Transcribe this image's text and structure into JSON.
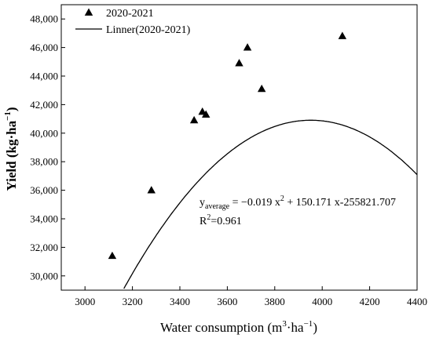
{
  "chart_data": {
    "type": "scatter",
    "xlabel": {
      "main": "Water consumption (m",
      "sup1": "3",
      "mid": "·ha",
      "sup2": "−1",
      "end": ")"
    },
    "ylabel": {
      "main": "Yield (kg·ha",
      "sup": "−1",
      "end": ")"
    },
    "xlim": [
      2900,
      4400
    ],
    "ylim": [
      29000,
      49000
    ],
    "x_ticks": [
      3000,
      3200,
      3400,
      3600,
      3800,
      4000,
      4200,
      4400
    ],
    "x_tick_labels": [
      "3000",
      "3200",
      "3400",
      "3600",
      "3800",
      "4000",
      "4200",
      "4400"
    ],
    "y_ticks": [
      30000,
      32000,
      34000,
      36000,
      38000,
      40000,
      42000,
      44000,
      46000,
      48000
    ],
    "y_tick_labels": [
      "30,000",
      "32,000",
      "34,000",
      "36,000",
      "38,000",
      "40,000",
      "42,000",
      "44,000",
      "46,000",
      "48,000"
    ],
    "series": [
      {
        "name": "2020-2021",
        "marker": "triangle",
        "color": "#000000",
        "points": [
          {
            "x": 3115,
            "y": 31400
          },
          {
            "x": 3280,
            "y": 36000
          },
          {
            "x": 3460,
            "y": 40900
          },
          {
            "x": 3495,
            "y": 41500
          },
          {
            "x": 3510,
            "y": 41300
          },
          {
            "x": 3650,
            "y": 44900
          },
          {
            "x": 3685,
            "y": 46000
          },
          {
            "x": 3745,
            "y": 43100
          },
          {
            "x": 4085,
            "y": 46800
          }
        ]
      },
      {
        "name": "Linner(2020-2021)",
        "type": "curve",
        "color": "#000000",
        "equation_coeffs": {
          "a": -0.019,
          "b": 150.171,
          "c": -255821.707
        }
      }
    ],
    "annotations": {
      "equation": {
        "y": "y",
        "sub": "average",
        "rest1": " = −0.019 x",
        "sup": "2",
        "rest2": " + 150.171 x-255821.707"
      },
      "r2": {
        "r": "R",
        "sup": "2",
        "rest": "=0.961"
      }
    },
    "legend_position": "top-left",
    "grid": false
  }
}
